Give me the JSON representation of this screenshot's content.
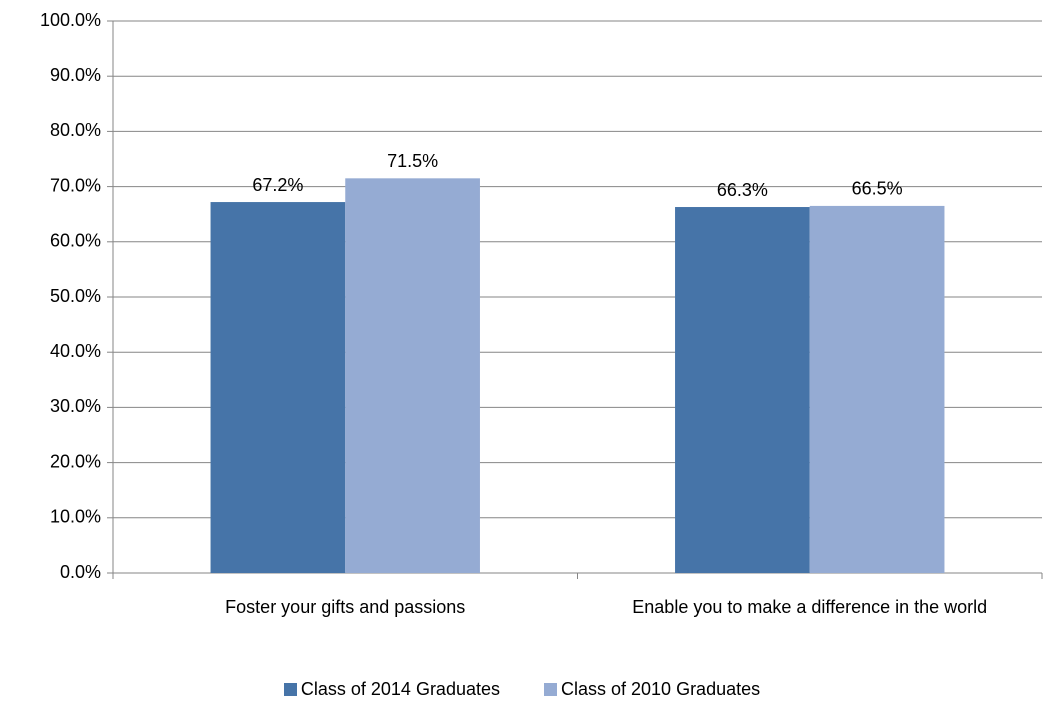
{
  "chart_data": {
    "type": "bar",
    "categories": [
      "Foster your gifts and passions",
      "Enable you to make a difference in the world"
    ],
    "series": [
      {
        "name": "Class of 2014 Graduates",
        "color": "#4674a8",
        "values": [
          67.2,
          66.3
        ],
        "value_labels": [
          "67.2%",
          "66.3%"
        ]
      },
      {
        "name": "Class of 2010 Graduates",
        "color": "#95abd3",
        "values": [
          71.5,
          66.5
        ],
        "value_labels": [
          "71.5%",
          "66.5%"
        ]
      }
    ],
    "ylim": [
      0,
      100
    ],
    "yticks": [
      {
        "value": 0,
        "label": "0.0%"
      },
      {
        "value": 10,
        "label": "10.0%"
      },
      {
        "value": 20,
        "label": "20.0%"
      },
      {
        "value": 30,
        "label": "30.0%"
      },
      {
        "value": 40,
        "label": "40.0%"
      },
      {
        "value": 50,
        "label": "50.0%"
      },
      {
        "value": 60,
        "label": "60.0%"
      },
      {
        "value": 70,
        "label": "70.0%"
      },
      {
        "value": 80,
        "label": "80.0%"
      },
      {
        "value": 90,
        "label": "90.0%"
      },
      {
        "value": 100,
        "label": "100.0%"
      }
    ],
    "grid": true,
    "legend": "bottom"
  }
}
